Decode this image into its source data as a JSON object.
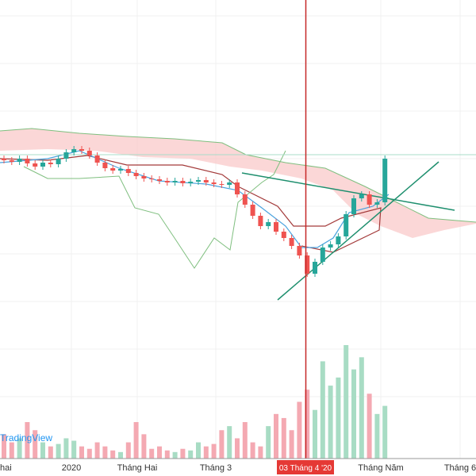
{
  "chart_data": {
    "type": "candlestick",
    "up_color": "#26a69a",
    "down_color": "#ef5350",
    "volume_up_color": "#a8dcc4",
    "volume_down_color": "#f4a9b2",
    "open": [
      200,
      198,
      196,
      200,
      194,
      190,
      195,
      193,
      200,
      208,
      212,
      210,
      204,
      195,
      188,
      185,
      187,
      182,
      178,
      175,
      174,
      172,
      170,
      172,
      169,
      171,
      173,
      170,
      168,
      167,
      170,
      155,
      142,
      128,
      115,
      120,
      108,
      100,
      90,
      78,
      55,
      70,
      88,
      92,
      102,
      130,
      150,
      155,
      142,
      145
    ],
    "high": [
      204,
      202,
      204,
      204,
      198,
      199,
      199,
      204,
      212,
      216,
      216,
      214,
      208,
      199,
      192,
      191,
      191,
      186,
      182,
      179,
      178,
      176,
      176,
      176,
      175,
      177,
      177,
      174,
      172,
      174,
      174,
      159,
      146,
      132,
      124,
      124,
      112,
      104,
      94,
      82,
      74,
      92,
      96,
      106,
      134,
      154,
      159,
      159,
      149,
      204
    ],
    "low": [
      194,
      192,
      192,
      190,
      186,
      186,
      189,
      189,
      196,
      204,
      206,
      200,
      191,
      184,
      181,
      181,
      178,
      174,
      171,
      170,
      168,
      166,
      166,
      165,
      165,
      167,
      166,
      164,
      163,
      163,
      151,
      138,
      124,
      111,
      111,
      104,
      96,
      86,
      74,
      51,
      51,
      66,
      84,
      88,
      98,
      126,
      146,
      138,
      138,
      141
    ],
    "close": [
      198,
      196,
      200,
      194,
      190,
      195,
      193,
      200,
      208,
      212,
      210,
      204,
      195,
      188,
      185,
      187,
      182,
      178,
      175,
      174,
      172,
      170,
      172,
      169,
      171,
      173,
      170,
      168,
      167,
      170,
      155,
      142,
      128,
      115,
      120,
      108,
      100,
      90,
      78,
      55,
      70,
      88,
      92,
      102,
      130,
      150,
      155,
      142,
      145,
      200
    ],
    "volume": [
      30,
      20,
      25,
      45,
      35,
      20,
      15,
      18,
      25,
      22,
      15,
      12,
      20,
      15,
      10,
      8,
      20,
      45,
      30,
      12,
      15,
      10,
      8,
      12,
      10,
      20,
      15,
      18,
      35,
      40,
      25,
      45,
      20,
      15,
      40,
      55,
      50,
      35,
      70,
      85,
      60,
      120,
      90,
      100,
      140,
      110,
      125,
      80,
      55,
      65
    ],
    "x_labels": [
      "hai",
      "2020",
      "Tháng Hai",
      "Tháng 3",
      "Tháng Năm",
      "Tháng 6"
    ],
    "crosshair_label": "03 Tháng 4 '20",
    "watermark": "TradingView"
  }
}
